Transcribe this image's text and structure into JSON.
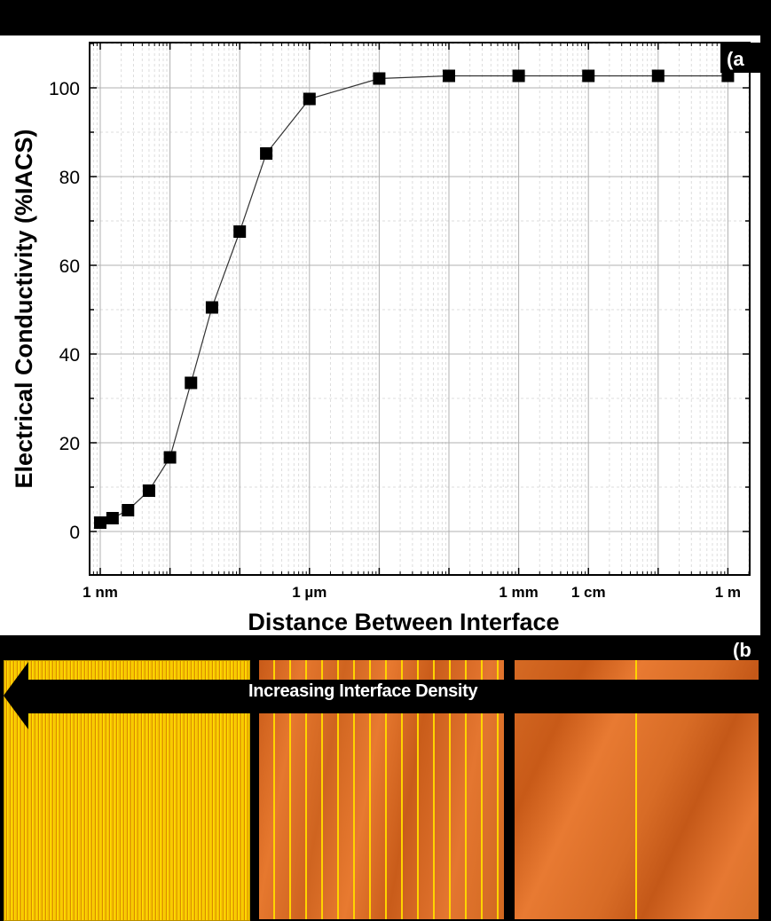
{
  "panel_a": {
    "label": "(a",
    "ylabel": "Electrical Conductivity (%IACS)",
    "xlabel": "Distance Between Interface",
    "yticks": [
      "0",
      "20",
      "40",
      "60",
      "80",
      "100"
    ],
    "xticks": [
      {
        "label": "1 nm",
        "decade": 0
      },
      {
        "label": "1 µm",
        "decade": 3
      },
      {
        "label": "1 mm",
        "decade": 6
      },
      {
        "label": "1 cm",
        "decade": 7
      },
      {
        "label": "1 m",
        "decade": 9
      }
    ]
  },
  "panel_b": {
    "label": "(b",
    "arrow_text": "Increasing Interface Density",
    "tiles": [
      "dense-interfaces",
      "medium-interfaces",
      "sparse-interfaces"
    ]
  },
  "colors": {
    "marker": "#000000",
    "line": "#333333",
    "grid_major": "#b0b0b0",
    "grid_minor": "#dddddd",
    "copper": "#e07430",
    "interface": "#ffd400"
  },
  "chart_data": {
    "type": "line",
    "title": "",
    "xlabel": "Distance Between Interface",
    "ylabel": "Electrical Conductivity (%IACS)",
    "xscale": "log",
    "x_units": "m",
    "x": [
      1e-09,
      1.5e-09,
      2.5e-09,
      5e-09,
      1e-08,
      2e-08,
      4e-08,
      1e-07,
      2.4e-07,
      1e-06,
      1e-05,
      0.0001,
      0.001,
      0.01,
      0.1,
      1
    ],
    "series": [
      {
        "name": "Conductivity",
        "marker": "square",
        "values": [
          2.0,
          3.0,
          4.8,
          9.2,
          16.7,
          33.5,
          50.5,
          67.6,
          85.2,
          97.5,
          102.1,
          102.7,
          102.7,
          102.7,
          102.7,
          102.7
        ]
      }
    ],
    "xtick_labels": [
      "1 nm",
      "1 µm",
      "1 mm",
      "1 cm",
      "1 m"
    ],
    "yticks": [
      0,
      20,
      40,
      60,
      80,
      100
    ],
    "ylim": [
      -10,
      110
    ],
    "xlim_decades": [
      -9.15,
      0.3
    ],
    "grid": true,
    "legend": null,
    "annotations": [
      "(a",
      "(b",
      "Increasing Interface Density"
    ]
  }
}
